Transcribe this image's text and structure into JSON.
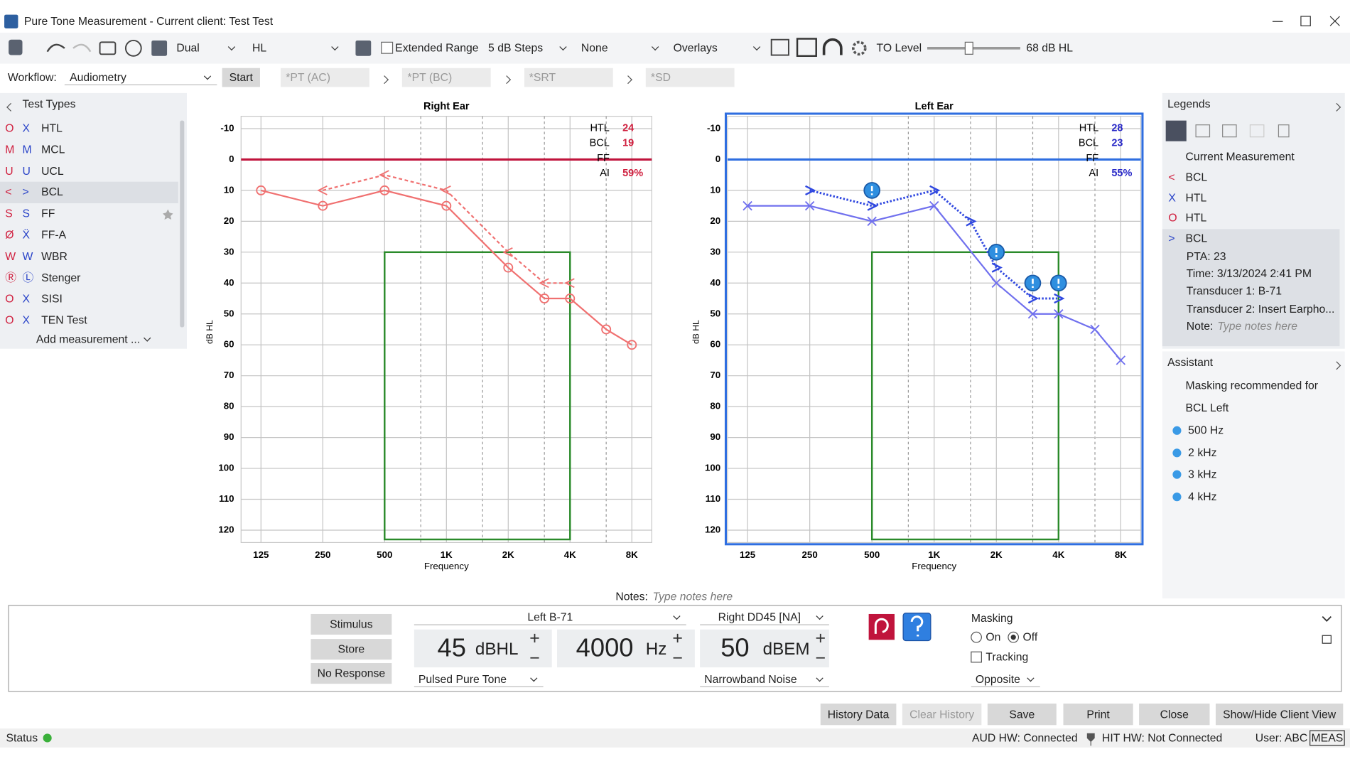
{
  "window": {
    "title": "Pure Tone Measurement - Current client: Test Test"
  },
  "toolbar": {
    "mode": "Dual",
    "scale": "HL",
    "extended_range": "Extended Range",
    "steps": "5 dB Steps",
    "filter": "None",
    "overlays": "Overlays",
    "to_level_label": "TO Level",
    "to_level_value": "68 dB HL"
  },
  "workflow": {
    "label": "Workflow:",
    "value": "Audiometry",
    "start": "Start",
    "steps": [
      "*PT (AC)",
      "*PT (BC)",
      "*SRT",
      "*SD"
    ]
  },
  "test_types": {
    "title": "Test Types",
    "right_color": "#d0203f",
    "left_color": "#2a44c8",
    "items": [
      {
        "right": "O",
        "left": "X",
        "label": "HTL"
      },
      {
        "right": "M",
        "left": "M",
        "label": "MCL"
      },
      {
        "right": "U",
        "left": "U",
        "label": "UCL"
      },
      {
        "right": "<",
        "left": ">",
        "label": "BCL"
      },
      {
        "right": "S",
        "left": "S",
        "label": "FF"
      },
      {
        "right": "Ø",
        "left": "Ẍ",
        "label": "FF-A"
      },
      {
        "right": "W",
        "left": "W",
        "label": "WBR"
      },
      {
        "right": "Ⓡ",
        "left": "Ⓛ",
        "label": "Stenger"
      },
      {
        "right": "O",
        "left": "X",
        "label": "SISI"
      },
      {
        "right": "O",
        "left": "X",
        "label": "TEN Test"
      }
    ],
    "add": "Add measurement ..."
  },
  "charts": [
    {
      "type": "line",
      "title": "Right Ear",
      "x_label": "Frequency",
      "y_label": "dB HL",
      "log_x": true,
      "selected": false,
      "xlim": [
        100,
        10000
      ],
      "ylim": [
        -14,
        124
      ],
      "xticks": [
        125,
        250,
        500,
        {
          "value": 1000,
          "label": "1K"
        },
        {
          "value": 2000,
          "label": "2K"
        },
        {
          "value": 4000,
          "label": "4K"
        },
        {
          "value": 8000,
          "label": "8K"
        }
      ],
      "minor_xticks": [
        750,
        1500,
        3000,
        6000
      ],
      "yticks": [
        -10,
        0,
        10,
        20,
        30,
        40,
        50,
        60,
        70,
        80,
        90,
        100,
        110,
        120
      ],
      "reference_line": {
        "value": 0,
        "color": "#c0143c"
      },
      "region": {
        "x": [
          500,
          4000
        ],
        "y": [
          30,
          123
        ],
        "color": "#2a8a2a"
      },
      "summary_color": "#d0203f",
      "summary": [
        {
          "label": "HTL",
          "value": 24
        },
        {
          "label": "BCL",
          "value": 19
        },
        {
          "label": "FF"
        },
        {
          "label": "AI",
          "value": "59%"
        }
      ],
      "series": [
        {
          "color": "#f07070",
          "marker": "circle",
          "style": "solid",
          "x": [
            125,
            250,
            500,
            1000,
            2000,
            3000,
            4000,
            6000,
            8000
          ],
          "values": [
            10,
            15,
            10,
            15,
            35,
            45,
            45,
            55,
            60
          ]
        },
        {
          "color": "#f07070",
          "marker": "lt",
          "style": "dashed",
          "x": [
            250,
            500,
            1000,
            2000,
            3000,
            4000
          ],
          "values": [
            10,
            5,
            10,
            30,
            40,
            40
          ]
        }
      ]
    },
    {
      "type": "line",
      "title": "Left Ear",
      "x_label": "Frequency",
      "y_label": "dB HL",
      "log_x": true,
      "selected": true,
      "xlim": [
        100,
        10000
      ],
      "ylim": [
        -14,
        124
      ],
      "xticks": [
        125,
        250,
        500,
        {
          "value": 1000,
          "label": "1K"
        },
        {
          "value": 2000,
          "label": "2K"
        },
        {
          "value": 4000,
          "label": "4K"
        },
        {
          "value": 8000,
          "label": "8K"
        }
      ],
      "minor_xticks": [
        750,
        1500,
        3000,
        6000
      ],
      "yticks": [
        -10,
        0,
        10,
        20,
        30,
        40,
        50,
        60,
        70,
        80,
        90,
        100,
        110,
        120
      ],
      "reference_line": {
        "value": 0,
        "color": "#2f6ee0"
      },
      "region": {
        "x": [
          500,
          4000
        ],
        "y": [
          30,
          123
        ],
        "color": "#2a8a2a"
      },
      "summary_color": "#2a2ac8",
      "summary": [
        {
          "label": "HTL",
          "value": 28
        },
        {
          "label": "BCL",
          "value": 23
        },
        {
          "label": "FF"
        },
        {
          "label": "AI",
          "value": "55%"
        }
      ],
      "series": [
        {
          "color": "#7070ee",
          "marker": "x",
          "style": "solid",
          "x": [
            125,
            250,
            500,
            1000,
            2000,
            3000,
            4000,
            6000,
            8000
          ],
          "values": [
            15,
            15,
            20,
            15,
            40,
            50,
            50,
            55,
            65
          ]
        },
        {
          "color": "#3048e0",
          "marker": "gt",
          "style": "dotted",
          "x": [
            250,
            500,
            1000,
            1500,
            2000,
            3000,
            4000
          ],
          "values": [
            10,
            15,
            10,
            20,
            35,
            45,
            45
          ]
        },
        {
          "color": "#2f8fe0",
          "marker": "warning",
          "style": "none",
          "x": [
            500,
            2000,
            3000,
            4000
          ],
          "values": [
            10,
            30,
            40,
            40
          ]
        }
      ]
    }
  ],
  "legends": {
    "title": "Legends",
    "section": "Current Measurement",
    "items": [
      {
        "symbol": "<",
        "label": "BCL",
        "color": "#d0203f"
      },
      {
        "symbol": "X",
        "label": "HTL",
        "color": "#2a44c8"
      },
      {
        "symbol": "O",
        "label": "HTL",
        "color": "#d0203f"
      },
      {
        "symbol": ">",
        "label": "BCL",
        "color": "#2a44c8"
      }
    ],
    "details": [
      "PTA: 23",
      "Time: 3/13/2024 2:41 PM",
      "Transducer 1: B-71",
      "Transducer 2: Insert Earpho..."
    ],
    "note_label": "Note:",
    "note_placeholder": "Type notes here"
  },
  "assistant": {
    "title": "Assistant",
    "heading": "Masking recommended for",
    "group": "BCL  Left",
    "items": [
      "500 Hz",
      "2 kHz",
      "3 kHz",
      "4 kHz"
    ]
  },
  "notes": {
    "label": "Notes:",
    "placeholder": "Type notes here"
  },
  "controls": {
    "buttons": [
      "Stimulus",
      "Store",
      "No Response"
    ],
    "stimulus": {
      "transducer": "Left B-71",
      "level": 45,
      "level_unit": "dBHL",
      "frequency": 4000,
      "frequency_unit": "Hz",
      "signal": "Pulsed Pure Tone"
    },
    "masker": {
      "transducer": "Right DD45 [NA]",
      "level": 50,
      "level_unit": "dBEM",
      "signal": "Narrowband Noise"
    },
    "masking": {
      "title": "Masking",
      "on": "On",
      "off": "Off",
      "tracking": "Tracking",
      "side": "Opposite"
    }
  },
  "actions": [
    "History Data",
    "Clear History",
    "Save",
    "Print",
    "Close",
    "Show/Hide Client View"
  ],
  "status": {
    "label": "Status",
    "aud_hw": "AUD HW: Connected",
    "hit_hw": "HIT HW: Not Connected",
    "user": "User: ABC",
    "mode": "MEAS"
  }
}
